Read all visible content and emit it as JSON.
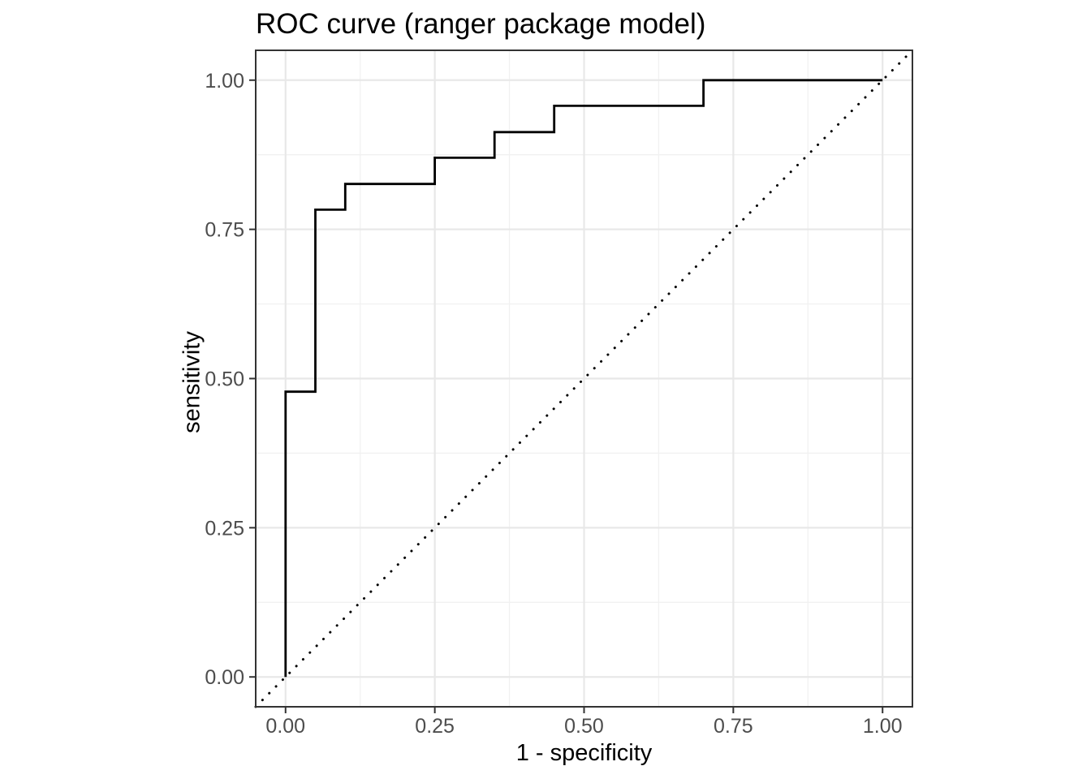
{
  "chart_data": {
    "type": "line",
    "title": "ROC curve (ranger package model)",
    "xlabel": "1 - specificity",
    "ylabel": "sensitivity",
    "xlim": [
      -0.05,
      1.05
    ],
    "ylim": [
      -0.05,
      1.05
    ],
    "x_ticks": [
      0,
      0.25,
      0.5,
      0.75,
      1
    ],
    "y_ticks": [
      0,
      0.25,
      0.5,
      0.75,
      1
    ],
    "x_tick_labels": [
      "0.00",
      "0.25",
      "0.50",
      "0.75",
      "1.00"
    ],
    "y_tick_labels": [
      "0.00",
      "0.25",
      "0.50",
      "0.75",
      "1.00"
    ],
    "x_minor_ticks": [
      0.125,
      0.375,
      0.625,
      0.875
    ],
    "y_minor_ticks": [
      0.125,
      0.375,
      0.625,
      0.875
    ],
    "grid": "major+minor",
    "legend": "none",
    "series": [
      {
        "name": "chance diagonal",
        "linetype": "dotted",
        "color": "#000000",
        "points": [
          [
            -0.05,
            -0.05
          ],
          [
            1.05,
            1.05
          ]
        ]
      },
      {
        "name": "ROC step curve",
        "linetype": "solid",
        "color": "#000000",
        "points": [
          [
            0.0,
            0.0
          ],
          [
            0.0,
            0.478
          ],
          [
            0.05,
            0.478
          ],
          [
            0.05,
            0.783
          ],
          [
            0.1,
            0.783
          ],
          [
            0.1,
            0.826
          ],
          [
            0.25,
            0.826
          ],
          [
            0.25,
            0.87
          ],
          [
            0.35,
            0.87
          ],
          [
            0.35,
            0.913
          ],
          [
            0.45,
            0.913
          ],
          [
            0.45,
            0.957
          ],
          [
            0.7,
            0.957
          ],
          [
            0.7,
            1.0
          ],
          [
            1.0,
            1.0
          ]
        ]
      }
    ],
    "colors": {
      "background": "#ffffff",
      "panel_background": "#ffffff",
      "panel_border": "#333333",
      "grid_major": "#e8e8e8",
      "grid_minor": "#f1f1f1",
      "tick_mark": "#333333",
      "axis_text": "#4d4d4d",
      "axis_title": "#000000",
      "title_text": "#000000",
      "line": "#000000"
    }
  }
}
